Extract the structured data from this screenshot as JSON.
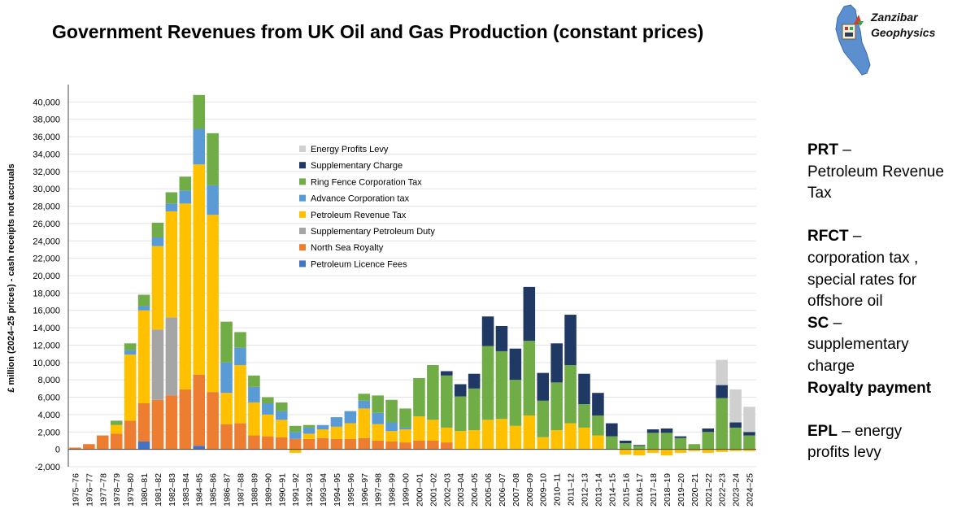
{
  "title": "Government Revenues from UK Oil and Gas Production (constant prices)",
  "logo": {
    "line1": "Zanzibar",
    "line2": "Geophysics"
  },
  "notes": {
    "prt_abbr": "PRT",
    "prt_desc": "Petroleum Revenue Tax",
    "rfct_abbr": "RFCT",
    "rfct_desc": "corporation tax , special rates for offshore oil",
    "sc_abbr": "SC",
    "sc_desc": "supplementary charge",
    "royalty": "Royalty payment",
    "epl_abbr": "EPL",
    "epl_desc": "energy profits levy"
  },
  "chart_data": {
    "type": "bar",
    "stacked": true,
    "title": "Government Revenues from UK Oil and Gas Production (constant prices)",
    "ylabel": "£ million (2024–25 prices) - cash receipts not accruals",
    "xlabel": "",
    "ylim": [
      -2000,
      42000
    ],
    "yticks": [
      -2000,
      0,
      2000,
      4000,
      6000,
      8000,
      10000,
      12000,
      14000,
      16000,
      18000,
      20000,
      22000,
      24000,
      26000,
      28000,
      30000,
      32000,
      34000,
      36000,
      38000,
      40000
    ],
    "ytick_labels": [
      "-2,000",
      "0",
      "2,000",
      "4,000",
      "6,000",
      "8,000",
      "10,000",
      "12,000",
      "14,000",
      "16,000",
      "18,000",
      "20,000",
      "22,000",
      "24,000",
      "26,000",
      "28,000",
      "30,000",
      "32,000",
      "34,000",
      "36,000",
      "38,000",
      "40,000"
    ],
    "legend_position": "inside-upper-center",
    "categories": [
      "1975–76",
      "1976–77",
      "1977–78",
      "1978–79",
      "1979–80",
      "1980–81",
      "1981–82",
      "1982–83",
      "1983–84",
      "1984–85",
      "1985–86",
      "1986–87",
      "1987–88",
      "1988–89",
      "1989–90",
      "1990–91",
      "1991–92",
      "1992–93",
      "1993–94",
      "1994–95",
      "1995–96",
      "1996–97",
      "1997–98",
      "1998–99",
      "1999–00",
      "2000–01",
      "2001–02",
      "2002–03",
      "2003–04",
      "2004–05",
      "2005–06",
      "2006–07",
      "2007–08",
      "2008–09",
      "2009–10",
      "2010–11",
      "2011–12",
      "2012–13",
      "2013–14",
      "2014–15",
      "2015–16",
      "2016–17",
      "2017–18",
      "2018–19",
      "2019–20",
      "2020–21",
      "2021–22",
      "2022–23",
      "2023–24",
      "2024–25"
    ],
    "series": [
      {
        "name": "Petroleum Licence Fees",
        "color": "#4472c4",
        "values": [
          0,
          0,
          0,
          0,
          0,
          900,
          0,
          0,
          0,
          400,
          0,
          0,
          0,
          0,
          0,
          0,
          0,
          0,
          0,
          0,
          0,
          0,
          0,
          0,
          0,
          0,
          0,
          0,
          0,
          0,
          0,
          0,
          0,
          0,
          0,
          0,
          0,
          0,
          0,
          0,
          0,
          0,
          0,
          0,
          0,
          0,
          0,
          0,
          0,
          0
        ]
      },
      {
        "name": "North Sea Royalty",
        "color": "#ed7d31",
        "values": [
          200,
          600,
          1600,
          1800,
          3300,
          4400,
          5700,
          6200,
          6900,
          8200,
          6600,
          2900,
          3000,
          1600,
          1500,
          1400,
          1200,
          1200,
          1300,
          1200,
          1200,
          1300,
          1000,
          900,
          800,
          1000,
          1000,
          800,
          0,
          0,
          0,
          0,
          0,
          0,
          0,
          0,
          0,
          0,
          0,
          0,
          0,
          0,
          0,
          0,
          0,
          0,
          0,
          0,
          0,
          0
        ]
      },
      {
        "name": "Supplementary Petroleum Duty",
        "color": "#a5a5a5",
        "values": [
          0,
          0,
          0,
          0,
          0,
          0,
          8100,
          9000,
          0,
          0,
          0,
          0,
          0,
          0,
          0,
          0,
          0,
          0,
          0,
          0,
          0,
          0,
          0,
          0,
          0,
          0,
          0,
          0,
          0,
          0,
          0,
          0,
          0,
          0,
          0,
          0,
          0,
          0,
          0,
          0,
          0,
          0,
          0,
          0,
          0,
          0,
          0,
          0,
          0,
          0
        ]
      },
      {
        "name": "Petroleum Revenue Tax",
        "color": "#ffc000",
        "values": [
          0,
          0,
          0,
          1000,
          7600,
          10700,
          9600,
          12200,
          21400,
          24200,
          20400,
          3600,
          6700,
          3800,
          2500,
          2000,
          -400,
          600,
          1000,
          1400,
          1800,
          3400,
          1900,
          1200,
          1500,
          2800,
          2400,
          1700,
          2100,
          2200,
          3400,
          3500,
          2700,
          3900,
          1400,
          2200,
          3000,
          2500,
          1600,
          0,
          -600,
          -700,
          -400,
          -700,
          -400,
          -200,
          -400,
          -300,
          -200,
          -200
        ]
      },
      {
        "name": "Advance Corporation tax",
        "color": "#5b9bd5",
        "values": [
          0,
          0,
          0,
          0,
          500,
          500,
          1000,
          900,
          1500,
          4100,
          3400,
          3500,
          2000,
          1800,
          1300,
          1000,
          800,
          700,
          500,
          1100,
          1400,
          900,
          1300,
          1000,
          200,
          0,
          0,
          0,
          0,
          0,
          0,
          0,
          0,
          0,
          0,
          0,
          0,
          0,
          0,
          0,
          0,
          0,
          0,
          0,
          0,
          0,
          0,
          0,
          0,
          0
        ]
      },
      {
        "name": "Ring Fence Corporation Tax",
        "color": "#70ad47",
        "values": [
          0,
          0,
          0,
          500,
          800,
          1300,
          1700,
          1300,
          1600,
          3900,
          6000,
          4700,
          1800,
          1300,
          700,
          1000,
          700,
          300,
          0,
          0,
          0,
          800,
          2000,
          2600,
          2200,
          4400,
          6300,
          6000,
          4000,
          4800,
          8500,
          7800,
          5300,
          8600,
          4200,
          5500,
          6700,
          2700,
          2300,
          1500,
          700,
          400,
          1900,
          1900,
          1300,
          600,
          2000,
          5900,
          2500,
          1600
        ]
      },
      {
        "name": "Supplementary Charge",
        "color": "#203864",
        "values": [
          0,
          0,
          0,
          0,
          0,
          0,
          0,
          0,
          0,
          0,
          0,
          0,
          0,
          0,
          0,
          0,
          0,
          0,
          0,
          0,
          0,
          0,
          0,
          0,
          0,
          0,
          0,
          500,
          1400,
          1700,
          3400,
          2900,
          3600,
          6200,
          3200,
          4500,
          5800,
          3500,
          2600,
          1500,
          300,
          100,
          400,
          500,
          200,
          0,
          400,
          1500,
          600,
          400
        ]
      },
      {
        "name": "Energy Profits Levy",
        "color": "#d0d0d0",
        "values": [
          0,
          0,
          0,
          0,
          0,
          0,
          0,
          0,
          0,
          0,
          0,
          0,
          0,
          0,
          0,
          0,
          0,
          0,
          0,
          0,
          0,
          0,
          0,
          0,
          0,
          0,
          0,
          0,
          0,
          0,
          0,
          0,
          0,
          0,
          0,
          0,
          0,
          0,
          0,
          0,
          0,
          0,
          0,
          0,
          0,
          0,
          0,
          2900,
          3800,
          2900
        ]
      }
    ]
  }
}
